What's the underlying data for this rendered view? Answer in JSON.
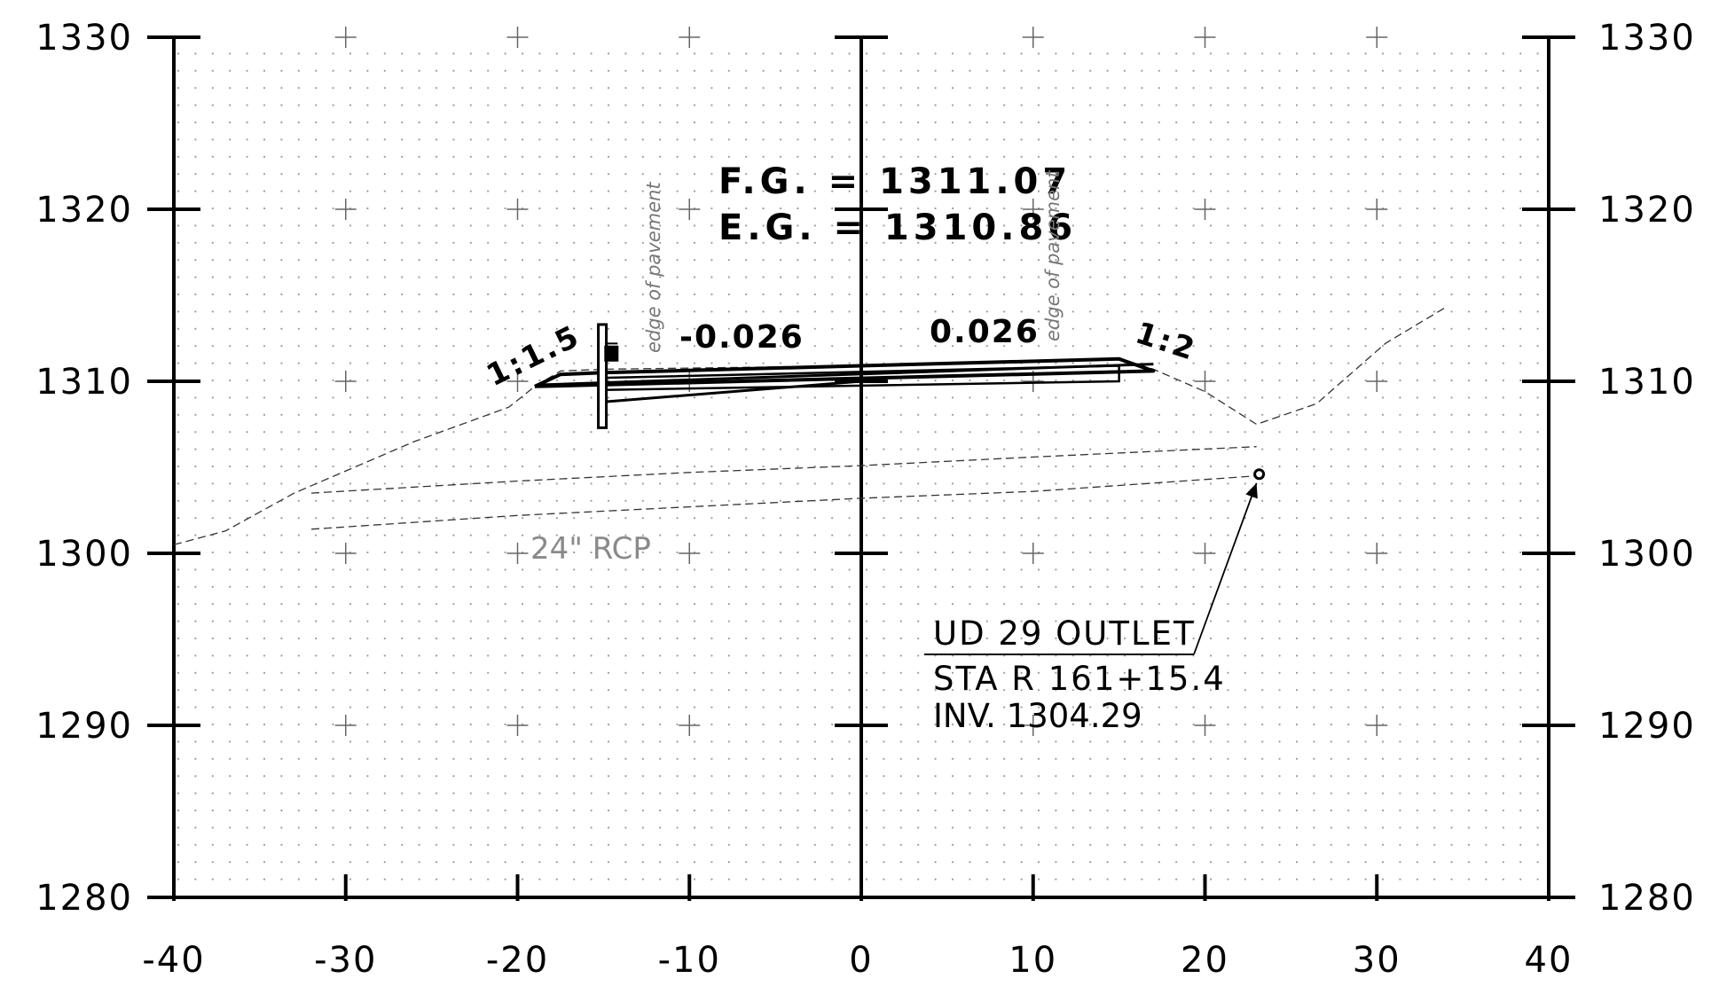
{
  "chart_data": {
    "type": "line",
    "xlim": [
      -40,
      40
    ],
    "ylim": [
      1280,
      1330
    ],
    "x_ticks": [
      -40,
      -30,
      -20,
      -10,
      0,
      10,
      20,
      30,
      40
    ],
    "y_ticks": [
      1280,
      1290,
      1300,
      1310,
      1320,
      1330
    ],
    "x_tick_labels": [
      "-40",
      "-30",
      "-20",
      "-10",
      "0",
      "10",
      "20",
      "30",
      "40"
    ],
    "y_tick_labels": [
      "1280",
      "1290",
      "1300",
      "1310",
      "1320",
      "1330"
    ],
    "grid": "dotted",
    "series": [
      {
        "style": "dashed",
        "points": [
          [
            -40,
            1300.5
          ],
          [
            -37,
            1301.3
          ],
          [
            -33,
            1303.5
          ],
          [
            -26,
            1306.5
          ],
          [
            -20.5,
            1308.5
          ],
          [
            -19,
            1309.7
          ],
          [
            -17.5,
            1310.6
          ],
          [
            -15,
            1310.7
          ],
          [
            0,
            1310.9
          ],
          [
            15,
            1311.3
          ],
          [
            17,
            1310.7
          ],
          [
            20,
            1309.4
          ],
          [
            23,
            1307.5
          ],
          [
            26.5,
            1308.7
          ],
          [
            30.5,
            1312.2
          ],
          [
            34,
            1314.3
          ]
        ]
      },
      {
        "style": "dashed",
        "points": [
          [
            -32,
            1303.5
          ],
          [
            -20,
            1304.2
          ],
          [
            -10,
            1304.7
          ],
          [
            0,
            1305.1
          ],
          [
            10,
            1305.6
          ],
          [
            23,
            1306.2
          ]
        ]
      },
      {
        "style": "dashed",
        "points": [
          [
            -32,
            1301.4
          ],
          [
            -20,
            1302.2
          ],
          [
            -10,
            1302.7
          ],
          [
            0,
            1303.2
          ],
          [
            10,
            1303.6
          ],
          [
            23,
            1304.5
          ]
        ]
      },
      {
        "style": "solid-heavy",
        "points": [
          [
            -19,
            1309.7
          ],
          [
            -17.5,
            1310.4
          ],
          [
            -15,
            1310.5
          ],
          [
            0,
            1310.9
          ],
          [
            15,
            1311.3
          ],
          [
            17,
            1310.6
          ],
          [
            -19,
            1309.7
          ]
        ]
      }
    ],
    "annotations": {
      "fg": "F.G.  =  1311.07",
      "eg": "E.G.  =  1310.86",
      "edge_left": "edge of pavement",
      "edge_right": "edge of pavement",
      "slope_left": "1:1.5",
      "slope_right": "1:2",
      "grade_left": "-0.026",
      "grade_right": "0.026",
      "pipe": "24\" RCP",
      "outlet_name": "UD 29 OUTLET",
      "outlet_sta": "STA R 161+15.4",
      "outlet_inv": "INV. 1304.29"
    },
    "outlet_point": [
      23,
      1304.6
    ]
  }
}
